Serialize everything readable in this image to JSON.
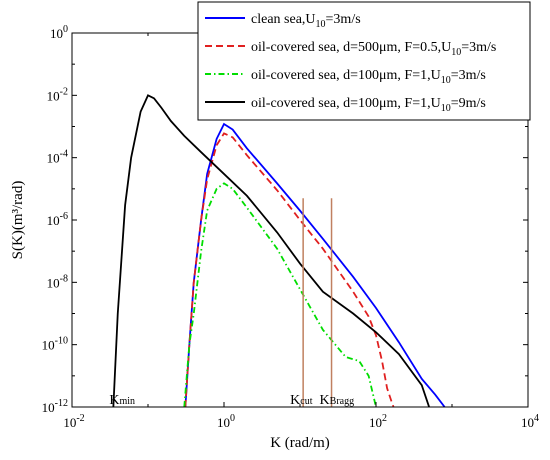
{
  "chart_data": {
    "type": "line",
    "title": "",
    "xlabel": "K (rad/m)",
    "ylabel": "S(K)(m³/rad)",
    "xscale": "log",
    "yscale": "log",
    "xlim": [
      0.01,
      10000
    ],
    "ylim": [
      1e-12,
      1
    ],
    "grid": false,
    "legend_position": "top-right",
    "x_ticks": [
      {
        "base": "10",
        "exp": "-2"
      },
      {
        "base": "10",
        "exp": "0"
      },
      {
        "base": "10",
        "exp": "2"
      },
      {
        "base": "10",
        "exp": "4"
      }
    ],
    "y_ticks": [
      {
        "base": "10",
        "exp": "0"
      },
      {
        "base": "10",
        "exp": "-2"
      },
      {
        "base": "10",
        "exp": "-4"
      },
      {
        "base": "10",
        "exp": "-6"
      },
      {
        "base": "10",
        "exp": "-8"
      },
      {
        "base": "10",
        "exp": "-10"
      },
      {
        "base": "10",
        "exp": "-12"
      }
    ],
    "series": [
      {
        "name_main": "clean sea,U",
        "name_sub": "10",
        "name_tail": "=3m/s",
        "color": "#0000ff",
        "style": "solid",
        "x": [
          0.31,
          0.35,
          0.4,
          0.5,
          0.6,
          0.8,
          1.0,
          1.3,
          2,
          5,
          10,
          20,
          50,
          100,
          200,
          400,
          600,
          800
        ],
        "y": [
          1e-12,
          1e-10,
          1e-08,
          1e-06,
          3e-05,
          0.0004,
          0.0012,
          0.0008,
          0.0002,
          1.5e-05,
          2e-06,
          2.5e-07,
          1.5e-08,
          1.5e-09,
          1.2e-10,
          8e-12,
          2.5e-12,
          1e-12
        ]
      },
      {
        "name_main": "oil-covered sea, d=500μm, F=0.5,U",
        "name_sub": "10",
        "name_tail": "=3m/s",
        "color": "#e02020",
        "style": "dashed",
        "x": [
          0.31,
          0.35,
          0.4,
          0.5,
          0.6,
          0.8,
          1.0,
          1.3,
          2,
          5,
          10,
          20,
          50,
          80,
          100,
          120,
          140,
          160,
          170
        ],
        "y": [
          1e-12,
          1e-10,
          1e-08,
          1e-06,
          2e-05,
          0.00025,
          0.0006,
          0.00045,
          0.00012,
          9e-06,
          1e-06,
          1.2e-07,
          5e-09,
          8e-10,
          2e-10,
          3e-11,
          4e-12,
          1.5e-12,
          1e-12
        ]
      },
      {
        "name_main": "oil-covered sea, d=100μm, F=1,U",
        "name_sub": "10",
        "name_tail": "=3m/s",
        "color": "#00dd00",
        "style": "dashdot",
        "x": [
          0.3,
          0.35,
          0.4,
          0.5,
          0.6,
          0.8,
          1.0,
          1.3,
          2,
          5,
          10,
          20,
          40,
          60,
          80,
          100
        ],
        "y": [
          1e-12,
          1e-10,
          1e-09,
          1e-07,
          2e-06,
          1e-05,
          1.5e-05,
          1e-05,
          2.5e-06,
          1.2e-07,
          6e-09,
          3e-10,
          4e-11,
          3e-11,
          1e-11,
          1e-12
        ]
      },
      {
        "name_main": "oil-covered sea, d=100μm, F=1,U",
        "name_sub": "10",
        "name_tail": "=9m/s",
        "color": "#000000",
        "style": "solid",
        "x": [
          0.035,
          0.04,
          0.05,
          0.06,
          0.08,
          0.1,
          0.12,
          0.15,
          0.2,
          0.3,
          0.5,
          1,
          2,
          5,
          10,
          20,
          50,
          100,
          200,
          400,
          500
        ],
        "y": [
          1e-12,
          1e-09,
          3e-06,
          0.0001,
          0.003,
          0.01,
          0.008,
          0.004,
          0.0015,
          0.0005,
          0.00015,
          3e-05,
          6e-06,
          4e-07,
          4e-08,
          5e-09,
          1e-09,
          2.5e-10,
          5e-11,
          5e-12,
          1e-12
        ]
      }
    ],
    "vertical_markers": [
      {
        "label": "cut",
        "x": 11,
        "y_top": 5e-06,
        "color": "#c08060"
      },
      {
        "label": "Bragg",
        "x": 26,
        "y_top": 5e-06,
        "color": "#c08060"
      }
    ],
    "annotations": [
      {
        "base": "K",
        "sub": "min"
      },
      {
        "base": "K",
        "sub": "cut"
      },
      {
        "base": "K",
        "sub": "Bragg"
      }
    ]
  }
}
